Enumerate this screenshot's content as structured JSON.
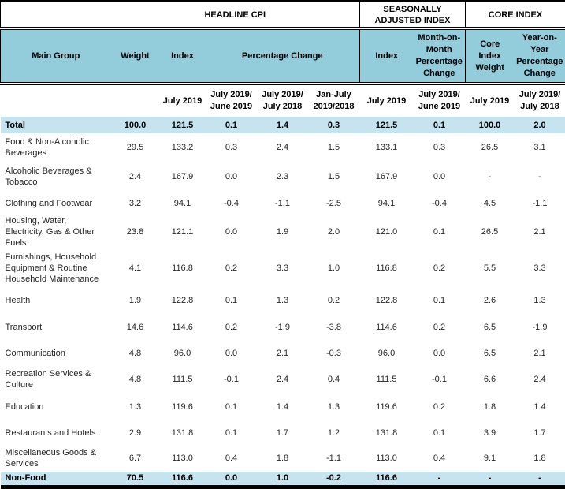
{
  "table": {
    "sections": [
      {
        "label": "HEADLINE CPI"
      },
      {
        "label": "SEASONALLY\nADJUSTED INDEX"
      },
      {
        "label": "CORE INDEX"
      }
    ],
    "columns": {
      "main_group": "Main Group",
      "weight": "Weight",
      "index": "Index",
      "percentage_change": "Percentage Change",
      "sa_index": "Index",
      "mom_percentage_change": "Month-on-\nMonth\nPercentage\nChange",
      "core_index_weight": "Core\nIndex\nWeight",
      "yoy_percentage_change": "Year-on-\nYear\nPercentage\nChange"
    },
    "periods": [
      "July 2019",
      "July 2019/\nJune 2019",
      "July 2019/\nJuly 2018",
      "Jan-July\n2019/2018",
      "July 2019",
      "July 2019/\nJune 2019",
      "July 2019",
      "July 2019/\nJuly 2018"
    ],
    "rows": [
      {
        "label": "Total",
        "emphasis": true,
        "values": [
          "100.0",
          "121.5",
          "0.1",
          "1.4",
          "0.3",
          "121.5",
          "0.1",
          "100.0",
          "2.0"
        ]
      },
      {
        "label": "Food & Non-Alcoholic Beverages",
        "emphasis": false,
        "values": [
          "29.5",
          "133.2",
          "0.3",
          "2.4",
          "1.5",
          "133.1",
          "0.3",
          "26.5",
          "3.1"
        ]
      },
      {
        "label": "Alcoholic Beverages & Tobacco",
        "emphasis": false,
        "values": [
          "2.4",
          "167.9",
          "0.0",
          "2.3",
          "1.5",
          "167.9",
          "0.0",
          "-",
          "-"
        ]
      },
      {
        "label": "Clothing and Footwear",
        "emphasis": false,
        "values": [
          "3.2",
          "94.1",
          "-0.4",
          "-1.1",
          "-2.5",
          "94.1",
          "-0.4",
          "4.5",
          "-1.1"
        ]
      },
      {
        "label": "Housing, Water, Electricity, Gas & Other Fuels",
        "emphasis": false,
        "values": [
          "23.8",
          "121.1",
          "0.0",
          "1.9",
          "2.0",
          "121.0",
          "0.1",
          "26.5",
          "2.1"
        ]
      },
      {
        "label": "Furnishings, Household Equipment  & Routine Household Maintenance",
        "emphasis": false,
        "values": [
          "4.1",
          "116.8",
          "0.2",
          "3.3",
          "1.0",
          "116.8",
          "0.2",
          "5.5",
          "3.3"
        ]
      },
      {
        "label": "Health",
        "emphasis": false,
        "values": [
          "1.9",
          "122.8",
          "0.1",
          "1.3",
          "0.2",
          "122.8",
          "0.1",
          "2.6",
          "1.3"
        ]
      },
      {
        "label": "Transport",
        "emphasis": false,
        "values": [
          "14.6",
          "114.6",
          "0.2",
          "-1.9",
          "-3.8",
          "114.6",
          "0.2",
          "6.5",
          "-1.9"
        ]
      },
      {
        "label": "Communication",
        "emphasis": false,
        "values": [
          "4.8",
          "96.0",
          "0.0",
          "2.1",
          "-0.3",
          "96.0",
          "0.0",
          "6.5",
          "2.1"
        ]
      },
      {
        "label": "Recreation Services & Culture",
        "emphasis": false,
        "values": [
          "4.8",
          "111.5",
          "-0.1",
          "2.4",
          "0.4",
          "111.5",
          "-0.1",
          "6.6",
          "2.4"
        ]
      },
      {
        "label": "Education",
        "emphasis": false,
        "values": [
          "1.3",
          "119.6",
          "0.1",
          "1.4",
          "1.3",
          "119.6",
          "0.2",
          "1.8",
          "1.4"
        ]
      },
      {
        "label": "Restaurants and Hotels",
        "emphasis": false,
        "values": [
          "2.9",
          "131.8",
          "0.1",
          "1.7",
          "1.2",
          "131.8",
          "0.1",
          "3.9",
          "1.7"
        ]
      },
      {
        "label": "Miscellaneous Goods & Services",
        "emphasis": false,
        "values": [
          "6.7",
          "113.0",
          "0.4",
          "1.8",
          "-1.1",
          "113.0",
          "0.4",
          "9.1",
          "1.8"
        ]
      },
      {
        "label": "Non-Food",
        "emphasis": true,
        "values": [
          "70.5",
          "116.6",
          "0.0",
          "1.0",
          "-0.2",
          "116.6",
          "-",
          "-",
          "-"
        ]
      }
    ]
  },
  "colors": {
    "header_fill": "#93CDDC",
    "emphasis_fill": "#C6E4EF",
    "border": "#000000"
  }
}
